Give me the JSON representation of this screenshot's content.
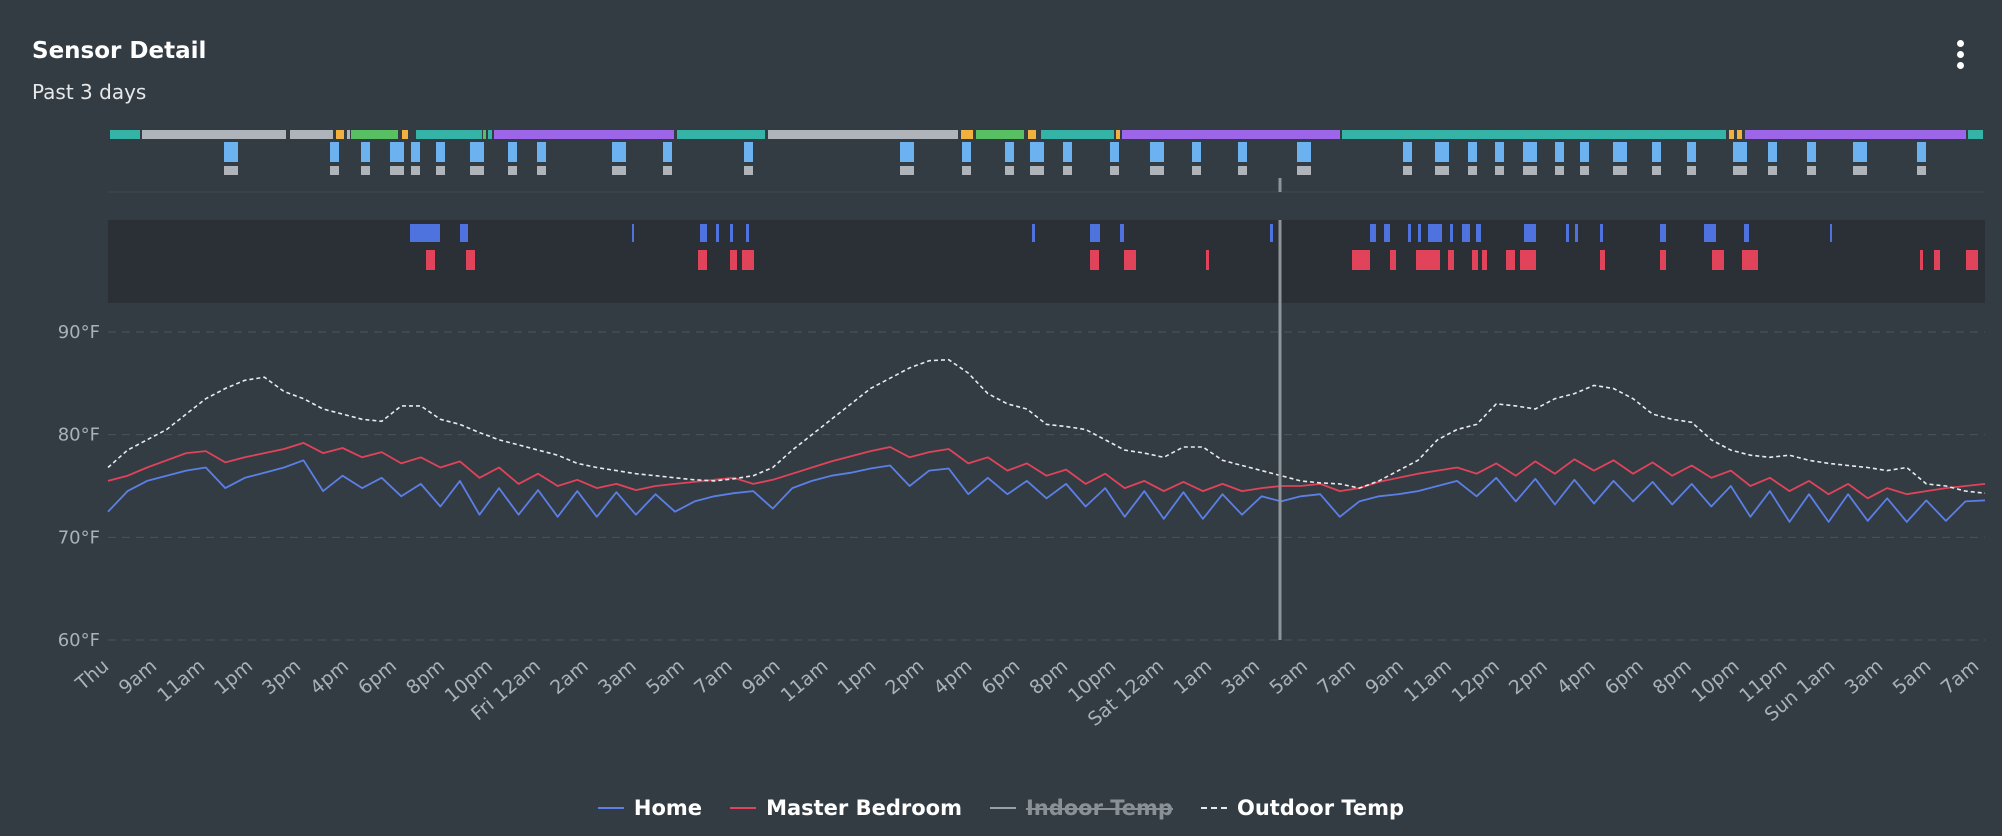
{
  "card": {
    "title": "Sensor Detail",
    "subtitle": "Past 3 days",
    "menu_icon": "more-vertical-icon"
  },
  "chart_data": {
    "type": "line",
    "title": "",
    "y_unit": "°F",
    "ylim": [
      60,
      90
    ],
    "y_ticks": [
      "90°F",
      "80°F",
      "70°F",
      "60°F"
    ],
    "y_tick_values": [
      90,
      80,
      70,
      60
    ],
    "x_tick_labels": [
      "Thu",
      "9am",
      "11am",
      "1pm",
      "3pm",
      "4pm",
      "6pm",
      "8pm",
      "10pm",
      "Fri 12am",
      "2am",
      "3am",
      "5am",
      "7am",
      "9am",
      "11am",
      "1pm",
      "2pm",
      "4pm",
      "6pm",
      "8pm",
      "10pm",
      "Sat 12am",
      "1am",
      "3am",
      "5am",
      "7am",
      "9am",
      "11am",
      "12pm",
      "2pm",
      "4pm",
      "6pm",
      "8pm",
      "10pm",
      "11pm",
      "Sun 1am",
      "3am",
      "5am",
      "7am"
    ],
    "grid": true,
    "legend_position": "bottom",
    "series": [
      {
        "name": "Home",
        "color": "#5b7fe6",
        "dashed": false,
        "visible": true,
        "values": [
          72.5,
          74.5,
          75.5,
          76,
          76.5,
          76.8,
          74.8,
          75.8,
          76.3,
          76.8,
          77.5,
          74.5,
          76,
          74.8,
          75.8,
          74,
          75.2,
          73,
          75.5,
          72.2,
          74.8,
          72.2,
          74.6,
          72,
          74.5,
          72,
          74.4,
          72.2,
          74.2,
          72.5,
          73.5,
          74,
          74.3,
          74.5,
          72.8,
          74.8,
          75.5,
          76,
          76.3,
          76.7,
          77,
          75,
          76.5,
          76.7,
          74.2,
          75.8,
          74.2,
          75.5,
          73.8,
          75.2,
          73,
          74.8,
          72,
          74.5,
          71.8,
          74.4,
          71.8,
          74.2,
          72.2,
          74,
          73.5,
          74,
          74.2,
          72,
          73.5,
          74,
          74.2,
          74.5,
          75,
          75.5,
          74,
          75.8,
          73.5,
          75.7,
          73.2,
          75.6,
          73.3,
          75.5,
          73.5,
          75.4,
          73.2,
          75.2,
          73,
          75,
          72,
          74.5,
          71.5,
          74.2,
          71.5,
          74.2,
          71.6,
          73.8,
          71.5,
          73.6,
          71.6,
          73.5,
          73.6
        ]
      },
      {
        "name": "Master Bedroom",
        "color": "#e0435a",
        "dashed": false,
        "visible": true,
        "values": [
          75.5,
          76,
          76.8,
          77.5,
          78.2,
          78.4,
          77.3,
          77.8,
          78.2,
          78.6,
          79.2,
          78.2,
          78.7,
          77.8,
          78.3,
          77.2,
          77.8,
          76.8,
          77.4,
          75.8,
          76.8,
          75.2,
          76.2,
          75,
          75.6,
          74.8,
          75.2,
          74.6,
          75,
          75.2,
          75.4,
          75.6,
          75.8,
          75.2,
          75.6,
          76.2,
          76.8,
          77.4,
          77.9,
          78.4,
          78.8,
          77.8,
          78.3,
          78.6,
          77.2,
          77.8,
          76.5,
          77.2,
          76,
          76.6,
          75.2,
          76.2,
          74.8,
          75.5,
          74.5,
          75.4,
          74.5,
          75.2,
          74.5,
          74.8,
          75,
          75,
          75.2,
          74.5,
          74.8,
          75.4,
          75.8,
          76.2,
          76.5,
          76.8,
          76.2,
          77.2,
          76,
          77.4,
          76.2,
          77.6,
          76.5,
          77.5,
          76.2,
          77.3,
          76,
          77,
          75.8,
          76.5,
          75,
          75.8,
          74.5,
          75.5,
          74.2,
          75.2,
          73.8,
          74.8,
          74.2,
          74.5,
          74.8,
          75,
          75.2
        ]
      },
      {
        "name": "Indoor Temp",
        "color": "#9aa1a6",
        "dashed": false,
        "visible": false,
        "values": []
      },
      {
        "name": "Outdoor Temp",
        "color": "#e8eaec",
        "dashed": true,
        "visible": true,
        "values": [
          76.8,
          78.5,
          79.5,
          80.5,
          82,
          83.5,
          84.5,
          85.3,
          85.6,
          84.2,
          83.5,
          82.5,
          82,
          81.5,
          81.3,
          82.8,
          82.8,
          81.5,
          81,
          80.2,
          79.5,
          79,
          78.5,
          78,
          77.2,
          76.8,
          76.5,
          76.2,
          76,
          75.8,
          75.6,
          75.5,
          75.7,
          76,
          76.8,
          78.5,
          80,
          81.5,
          83,
          84.5,
          85.5,
          86.5,
          87.2,
          87.3,
          86,
          84,
          83,
          82.5,
          81,
          80.8,
          80.5,
          79.5,
          78.5,
          78.2,
          77.8,
          78.8,
          78.8,
          77.5,
          77,
          76.5,
          76,
          75.5,
          75.3,
          75.2,
          74.8,
          75.5,
          76.5,
          77.5,
          79.5,
          80.5,
          81,
          83,
          82.8,
          82.5,
          83.5,
          84,
          84.8,
          84.5,
          83.5,
          82,
          81.5,
          81.2,
          79.5,
          78.5,
          78,
          77.8,
          78,
          77.5,
          77.2,
          77,
          76.8,
          76.5,
          76.8,
          75.2,
          75,
          74.5,
          74.3
        ]
      }
    ],
    "state_bars": {
      "hvac_mode_colors": [
        "#34b3a6",
        "#aeb4ba",
        "#f1b13f",
        "#58bf63",
        "#9d65e8",
        "#6db2f0"
      ],
      "fan_activity": {
        "heat_color": "#4e73df",
        "cool_color": "#e0435a"
      }
    }
  },
  "legend": [
    {
      "label": "Home",
      "color": "#5b7fe6",
      "dashed": false,
      "disabled": false
    },
    {
      "label": "Master Bedroom",
      "color": "#e0435a",
      "dashed": false,
      "disabled": false
    },
    {
      "label": "Indoor Temp",
      "color": "#9aa1a6",
      "dashed": false,
      "disabled": true
    },
    {
      "label": "Outdoor Temp",
      "color": "#e8eaec",
      "dashed": true,
      "disabled": false
    }
  ]
}
